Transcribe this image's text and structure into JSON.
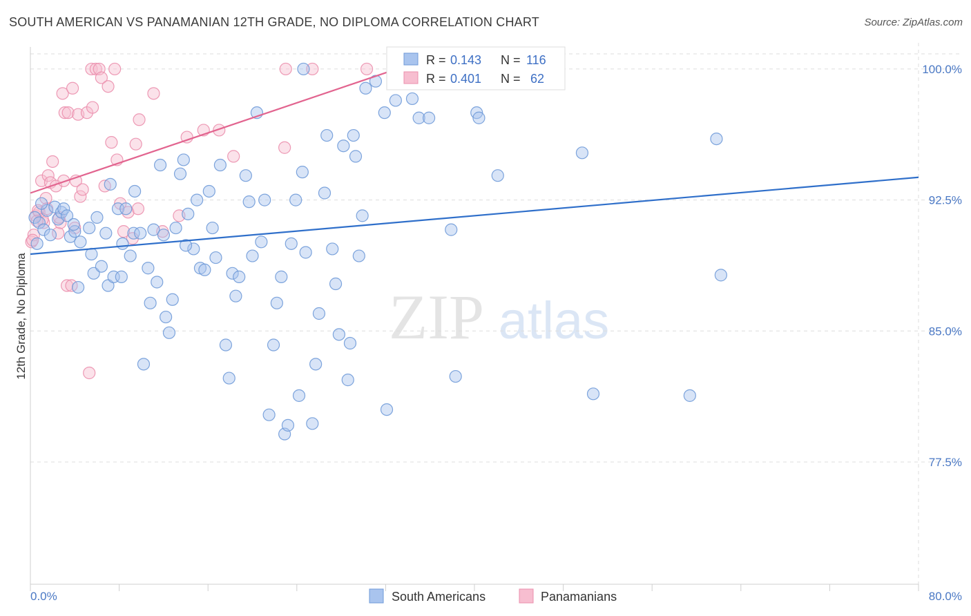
{
  "title": "SOUTH AMERICAN VS PANAMANIAN 12TH GRADE, NO DIPLOMA CORRELATION CHART",
  "source": "Source: ZipAtlas.com",
  "watermark": {
    "zip": "ZIP",
    "atlas": "atlas"
  },
  "colors": {
    "blue_fill": "#a9c4ee",
    "blue_stroke": "#6f9ad8",
    "blue_line": "#2f6fca",
    "pink_fill": "#f7bed0",
    "pink_stroke": "#eb8fad",
    "pink_line": "#e2648f",
    "grid": "#dddddd",
    "axis_text": "#4a78c4"
  },
  "stats_legend": {
    "r_label": "R =",
    "n_label": "N =",
    "rows": [
      {
        "series": "South Americans",
        "r": "0.143",
        "n": "116"
      },
      {
        "series": "Panamanians",
        "r": "0.401",
        "n": "62"
      }
    ]
  },
  "chart_data": {
    "type": "scatter",
    "title": "SOUTH AMERICAN VS PANAMANIAN 12TH GRADE, NO DIPLOMA CORRELATION CHART",
    "xlabel": "",
    "ylabel": "12th Grade, No Diploma",
    "xlim": [
      0,
      80
    ],
    "ylim": [
      70.5,
      101.5
    ],
    "x_tick_labels": [
      "0.0%",
      "80.0%"
    ],
    "y_ticks": [
      77.5,
      85.0,
      92.5,
      100.0
    ],
    "y_tick_labels": [
      "77.5%",
      "85.0%",
      "92.5%",
      "100.0%"
    ],
    "grid": true,
    "legend_position": "bottom",
    "series": [
      {
        "name": "South Americans",
        "trend": [
          [
            0.0,
            89.4
          ],
          [
            80.0,
            93.8
          ]
        ],
        "points": [
          [
            0.4,
            91.5
          ],
          [
            0.6,
            90.0
          ],
          [
            0.8,
            91.2
          ],
          [
            1.2,
            90.8
          ],
          [
            1.5,
            91.9
          ],
          [
            1.8,
            90.5
          ],
          [
            2.2,
            92.1
          ],
          [
            2.5,
            91.4
          ],
          [
            2.8,
            91.8
          ],
          [
            3.0,
            92.0
          ],
          [
            3.3,
            91.6
          ],
          [
            3.6,
            90.4
          ],
          [
            4.0,
            90.7
          ],
          [
            4.3,
            87.5
          ],
          [
            4.5,
            90.1
          ],
          [
            5.3,
            90.9
          ],
          [
            5.5,
            89.4
          ],
          [
            5.7,
            88.3
          ],
          [
            6.0,
            91.5
          ],
          [
            6.4,
            88.7
          ],
          [
            6.8,
            90.6
          ],
          [
            7.0,
            87.6
          ],
          [
            7.2,
            93.4
          ],
          [
            7.5,
            88.1
          ],
          [
            7.9,
            92.0
          ],
          [
            8.2,
            88.1
          ],
          [
            8.6,
            92.0
          ],
          [
            9.0,
            89.3
          ],
          [
            9.3,
            90.6
          ],
          [
            9.9,
            90.6
          ],
          [
            10.2,
            83.1
          ],
          [
            10.6,
            88.6
          ],
          [
            10.8,
            86.6
          ],
          [
            11.1,
            90.8
          ],
          [
            11.4,
            87.8
          ],
          [
            11.7,
            94.5
          ],
          [
            12.2,
            85.8
          ],
          [
            12.5,
            84.9
          ],
          [
            12.8,
            86.8
          ],
          [
            13.1,
            90.9
          ],
          [
            13.5,
            94.0
          ],
          [
            13.8,
            94.8
          ],
          [
            14.2,
            91.7
          ],
          [
            14.7,
            89.7
          ],
          [
            15.0,
            92.5
          ],
          [
            15.3,
            88.6
          ],
          [
            15.7,
            88.5
          ],
          [
            16.1,
            93.0
          ],
          [
            16.4,
            90.9
          ],
          [
            16.7,
            89.2
          ],
          [
            17.1,
            94.5
          ],
          [
            17.6,
            84.2
          ],
          [
            17.9,
            82.3
          ],
          [
            18.2,
            88.3
          ],
          [
            18.5,
            87.0
          ],
          [
            18.8,
            88.1
          ],
          [
            19.4,
            93.9
          ],
          [
            19.7,
            92.4
          ],
          [
            20.0,
            89.3
          ],
          [
            20.4,
            97.5
          ],
          [
            20.8,
            90.1
          ],
          [
            21.1,
            92.5
          ],
          [
            21.5,
            80.2
          ],
          [
            21.9,
            84.2
          ],
          [
            22.2,
            86.6
          ],
          [
            22.6,
            88.1
          ],
          [
            22.9,
            79.1
          ],
          [
            23.2,
            79.6
          ],
          [
            23.5,
            90.0
          ],
          [
            23.9,
            92.5
          ],
          [
            24.2,
            81.3
          ],
          [
            24.5,
            94.1
          ],
          [
            24.8,
            89.5
          ],
          [
            25.4,
            79.7
          ],
          [
            25.7,
            83.1
          ],
          [
            26.0,
            86.0
          ],
          [
            26.5,
            92.9
          ],
          [
            26.7,
            96.2
          ],
          [
            27.2,
            89.7
          ],
          [
            27.5,
            87.7
          ],
          [
            27.8,
            84.8
          ],
          [
            28.2,
            95.6
          ],
          [
            28.6,
            82.2
          ],
          [
            28.8,
            84.3
          ],
          [
            29.1,
            96.2
          ],
          [
            29.3,
            95.0
          ],
          [
            29.6,
            89.3
          ],
          [
            29.9,
            91.6
          ],
          [
            30.2,
            98.9
          ],
          [
            31.1,
            99.3
          ],
          [
            31.9,
            97.5
          ],
          [
            32.1,
            80.5
          ],
          [
            32.9,
            98.2
          ],
          [
            32.9,
            100.0
          ],
          [
            34.4,
            98.3
          ],
          [
            35.0,
            97.2
          ],
          [
            35.9,
            97.2
          ],
          [
            37.9,
            90.8
          ],
          [
            38.3,
            82.4
          ],
          [
            39.0,
            100.0
          ],
          [
            40.2,
            97.5
          ],
          [
            40.4,
            97.2
          ],
          [
            42.1,
            93.9
          ],
          [
            43.6,
            100.0
          ],
          [
            49.7,
            95.2
          ],
          [
            50.7,
            81.4
          ],
          [
            59.4,
            81.3
          ],
          [
            61.8,
            96.0
          ],
          [
            62.2,
            88.2
          ],
          [
            24.6,
            100.0
          ],
          [
            12.0,
            90.5
          ],
          [
            9.4,
            93.0
          ],
          [
            3.9,
            91.1
          ],
          [
            1.0,
            92.3
          ],
          [
            14.0,
            89.9
          ],
          [
            8.3,
            90.0
          ]
        ]
      },
      {
        "name": "Panamanians",
        "trend": [
          [
            0.0,
            92.9
          ],
          [
            33.0,
            100.0
          ]
        ],
        "points": [
          [
            0.1,
            90.1
          ],
          [
            0.3,
            90.5
          ],
          [
            0.5,
            91.6
          ],
          [
            0.8,
            91.8
          ],
          [
            1.0,
            93.6
          ],
          [
            1.2,
            91.2
          ],
          [
            1.4,
            92.6
          ],
          [
            1.6,
            93.9
          ],
          [
            1.8,
            93.5
          ],
          [
            2.0,
            94.7
          ],
          [
            2.3,
            93.3
          ],
          [
            2.5,
            90.6
          ],
          [
            2.7,
            91.2
          ],
          [
            2.9,
            98.6
          ],
          [
            3.1,
            97.5
          ],
          [
            3.3,
            87.6
          ],
          [
            3.4,
            97.5
          ],
          [
            3.7,
            87.6
          ],
          [
            3.8,
            98.9
          ],
          [
            4.1,
            93.6
          ],
          [
            4.3,
            97.4
          ],
          [
            4.5,
            92.7
          ],
          [
            4.7,
            93.1
          ],
          [
            5.1,
            97.5
          ],
          [
            5.3,
            82.6
          ],
          [
            5.5,
            100.0
          ],
          [
            5.6,
            97.8
          ],
          [
            5.9,
            100.0
          ],
          [
            6.2,
            100.0
          ],
          [
            6.4,
            99.5
          ],
          [
            6.7,
            93.3
          ],
          [
            7.0,
            99.0
          ],
          [
            7.3,
            95.8
          ],
          [
            7.6,
            100.0
          ],
          [
            7.8,
            94.8
          ],
          [
            8.1,
            92.3
          ],
          [
            8.4,
            90.7
          ],
          [
            8.8,
            91.8
          ],
          [
            9.2,
            90.3
          ],
          [
            9.5,
            95.7
          ],
          [
            9.8,
            97.1
          ],
          [
            11.1,
            98.6
          ],
          [
            11.9,
            90.7
          ],
          [
            13.4,
            91.6
          ],
          [
            14.1,
            96.1
          ],
          [
            15.6,
            96.5
          ],
          [
            17.0,
            96.5
          ],
          [
            18.3,
            95.0
          ],
          [
            22.9,
            95.5
          ],
          [
            23.0,
            100.0
          ],
          [
            25.4,
            100.0
          ],
          [
            30.3,
            100.0
          ],
          [
            41.9,
            100.0
          ],
          [
            0.7,
            91.9
          ],
          [
            1.1,
            91.4
          ],
          [
            1.5,
            92.0
          ],
          [
            2.6,
            91.5
          ],
          [
            3.0,
            93.6
          ],
          [
            4.0,
            90.9
          ],
          [
            9.7,
            92.0
          ],
          [
            0.2,
            90.2
          ],
          [
            0.6,
            91.3
          ]
        ]
      }
    ]
  },
  "bottom_legend": [
    {
      "label": "South Americans"
    },
    {
      "label": "Panamanians"
    }
  ]
}
